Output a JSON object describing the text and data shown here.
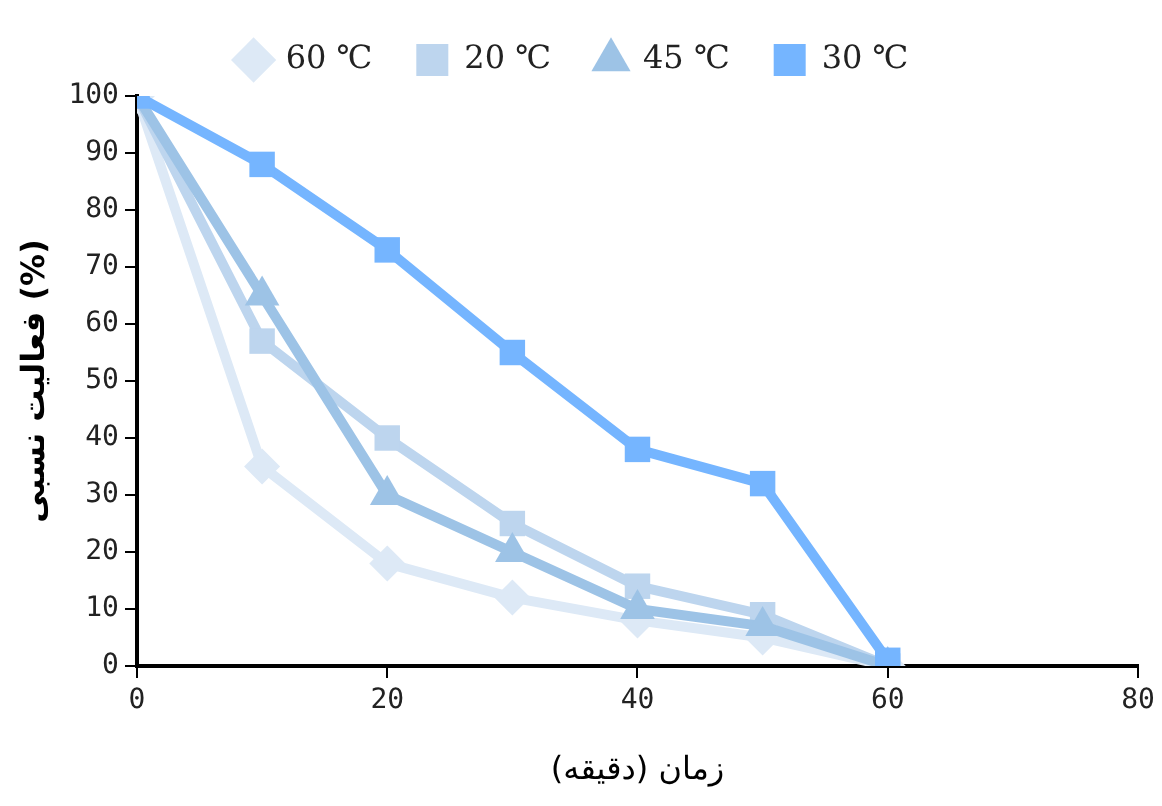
{
  "chart_data": {
    "type": "line",
    "xlabel": "زمان (دقیقه)",
    "ylabel": "فعالیت نسبی (%)",
    "x": [
      0,
      10,
      20,
      30,
      40,
      50,
      60
    ],
    "xlim": [
      0,
      80
    ],
    "xticks": [
      0,
      20,
      40,
      60,
      80
    ],
    "ylim": [
      0,
      100
    ],
    "yticks": [
      0,
      10,
      20,
      30,
      40,
      50,
      60,
      70,
      80,
      90,
      100
    ],
    "grid": false,
    "legend": "top",
    "line_style": "solid",
    "series": [
      {
        "name": "60 ℃",
        "color": "#dde9f6",
        "marker": "diamond",
        "values": [
          100,
          35,
          18,
          12,
          8,
          5,
          0
        ]
      },
      {
        "name": "20 ℃",
        "color": "#bdd5ee",
        "marker": "square",
        "values": [
          100,
          57,
          40,
          25,
          14,
          9,
          0
        ]
      },
      {
        "name": "45 ℃",
        "color": "#9dc3e6",
        "marker": "triangle",
        "values": [
          100,
          65,
          30,
          20,
          10,
          7,
          0
        ]
      },
      {
        "name": "30 ℃",
        "color": "#75b5ff",
        "marker": "square",
        "values": [
          100,
          88,
          73,
          55,
          38,
          32,
          1
        ]
      }
    ]
  }
}
